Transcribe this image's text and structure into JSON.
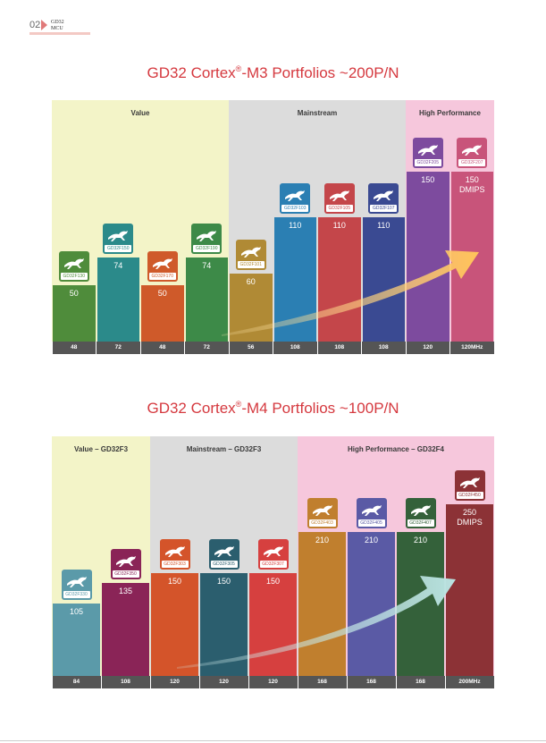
{
  "header": {
    "page_number": "02",
    "brand_line1": "GD32",
    "brand_line2": "MCU"
  },
  "colors": {
    "title_red": "#d5393f",
    "value_zone": "#f3f4c8",
    "mainstream_zone": "#dcdcdc",
    "high_perf_zone": "#f6c7dc",
    "freq_bar": "#555555"
  },
  "m3": {
    "title_prefix": "GD32 Cortex",
    "title_reg": "®",
    "title_suffix": "-M3 Portfolios ~200P/N",
    "zones": [
      {
        "label": "Value"
      },
      {
        "label": "Mainstream"
      },
      {
        "label": "High Performance"
      }
    ],
    "bars": [
      {
        "chip": "GD32F130",
        "value": "50",
        "freq": "48",
        "color": "#4f8c3b",
        "level": 50
      },
      {
        "chip": "GD32F150",
        "value": "74",
        "freq": "72",
        "color": "#2b8a8a",
        "level": 74
      },
      {
        "chip": "GD32F170",
        "value": "50",
        "freq": "48",
        "color": "#cf5a2a",
        "level": 50
      },
      {
        "chip": "GD32F190",
        "value": "74",
        "freq": "72",
        "color": "#3d8a48",
        "level": 74
      },
      {
        "chip": "GD32F101",
        "value": "60",
        "freq": "56",
        "color": "#b08a35",
        "level": 60
      },
      {
        "chip": "GD32F103",
        "value": "110",
        "freq": "108",
        "color": "#2b7fb3",
        "level": 110
      },
      {
        "chip": "GD32F105",
        "value": "110",
        "freq": "108",
        "color": "#c4464a",
        "level": 110
      },
      {
        "chip": "GD32F107",
        "value": "110",
        "freq": "108",
        "color": "#3a4a92",
        "level": 110
      },
      {
        "chip": "GD32F205",
        "value": "150",
        "freq": "120",
        "color": "#7d4b9e",
        "level": 150
      },
      {
        "chip": "GD32F207",
        "value": "150",
        "value2": "DMIPS",
        "freq": "120MHz",
        "color": "#c8547a",
        "level": 150
      }
    ]
  },
  "m4": {
    "title_prefix": "GD32 Cortex",
    "title_reg": "®",
    "title_suffix": "-M4 Portfolios ~100P/N",
    "zones": [
      {
        "label": "Value – GD32F3"
      },
      {
        "label": "Mainstream – GD32F3"
      },
      {
        "label": "High Performance – GD32F4"
      }
    ],
    "bars": [
      {
        "chip": "GD32F330",
        "value": "105",
        "freq": "84",
        "color": "#5b9aa9",
        "level": 105
      },
      {
        "chip": "GD32F350",
        "value": "135",
        "freq": "108",
        "color": "#8a2457",
        "level": 135
      },
      {
        "chip": "GD32F303",
        "value": "150",
        "freq": "120",
        "color": "#d4542a",
        "level": 150
      },
      {
        "chip": "GD32F305",
        "value": "150",
        "freq": "120",
        "color": "#2b5e6e",
        "level": 150
      },
      {
        "chip": "GD32F307",
        "value": "150",
        "freq": "120",
        "color": "#d6403f",
        "level": 150
      },
      {
        "chip": "GD32F403",
        "value": "210",
        "freq": "168",
        "color": "#c07f2e",
        "level": 210
      },
      {
        "chip": "GD32F405",
        "value": "210",
        "freq": "168",
        "color": "#5a5aa5",
        "level": 210
      },
      {
        "chip": "GD32F407",
        "value": "210",
        "freq": "168",
        "color": "#34613a",
        "level": 210
      },
      {
        "chip": "GD32F450",
        "value": "250",
        "value2": "DMIPS",
        "freq": "200MHz",
        "color": "#8c3236",
        "level": 250
      }
    ]
  }
}
